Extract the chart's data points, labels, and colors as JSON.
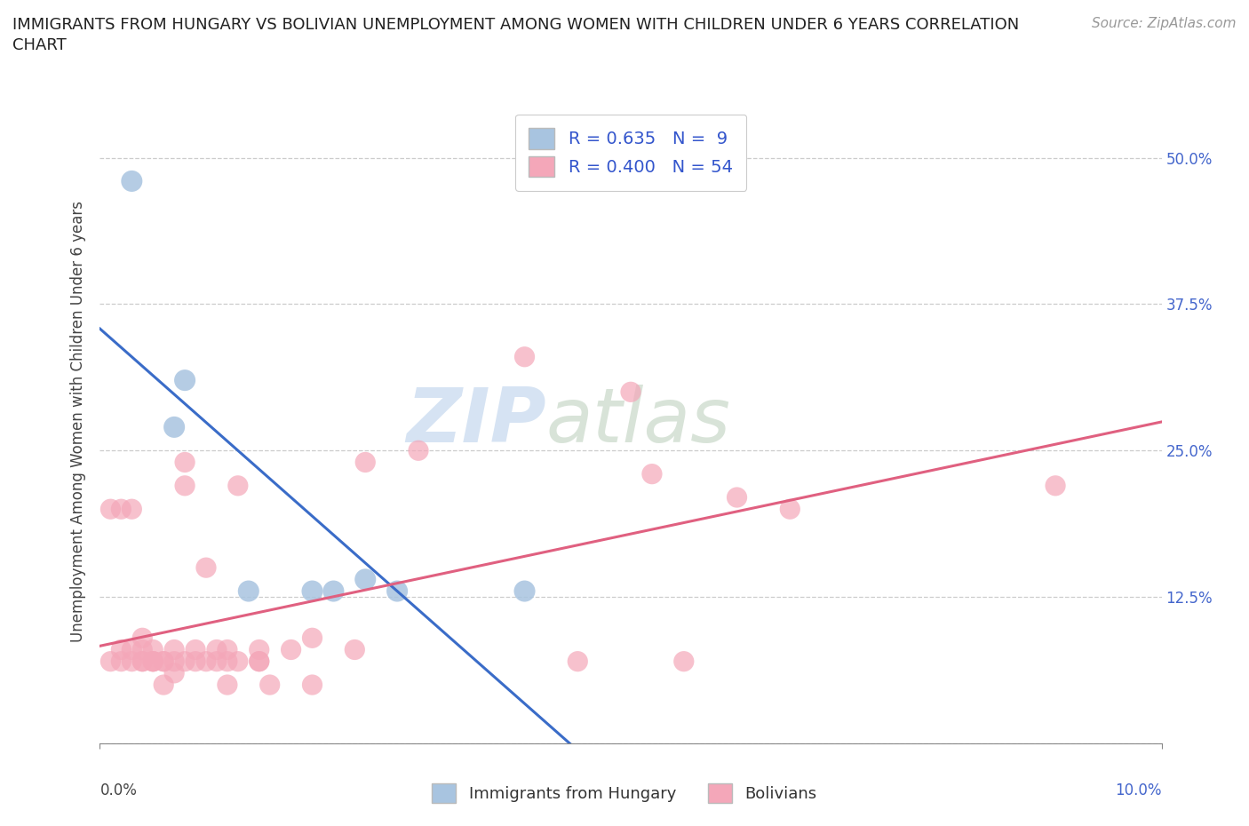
{
  "title": "IMMIGRANTS FROM HUNGARY VS BOLIVIAN UNEMPLOYMENT AMONG WOMEN WITH CHILDREN UNDER 6 YEARS CORRELATION\nCHART",
  "source": "Source: ZipAtlas.com",
  "ylabel": "Unemployment Among Women with Children Under 6 years",
  "watermark_zip": "ZIP",
  "watermark_atlas": "atlas",
  "xlim": [
    0.0,
    0.1
  ],
  "ylim": [
    0.0,
    0.55
  ],
  "yticks": [
    0.0,
    0.125,
    0.25,
    0.375,
    0.5
  ],
  "ytick_labels": [
    "",
    "12.5%",
    "25.0%",
    "37.5%",
    "50.0%"
  ],
  "hungary_R": 0.635,
  "hungary_N": 9,
  "bolivia_R": 0.4,
  "bolivia_N": 54,
  "hungary_color": "#a8c4e0",
  "bolivia_color": "#f4a7b9",
  "hungary_line_color": "#3a6cc8",
  "bolivia_line_color": "#e06080",
  "hungary_scatter": [
    [
      0.003,
      0.48
    ],
    [
      0.007,
      0.27
    ],
    [
      0.008,
      0.31
    ],
    [
      0.014,
      0.13
    ],
    [
      0.02,
      0.13
    ],
    [
      0.022,
      0.13
    ],
    [
      0.025,
      0.14
    ],
    [
      0.028,
      0.13
    ],
    [
      0.04,
      0.13
    ]
  ],
  "bolivia_scatter": [
    [
      0.001,
      0.2
    ],
    [
      0.001,
      0.07
    ],
    [
      0.002,
      0.07
    ],
    [
      0.002,
      0.08
    ],
    [
      0.002,
      0.2
    ],
    [
      0.003,
      0.08
    ],
    [
      0.003,
      0.07
    ],
    [
      0.003,
      0.2
    ],
    [
      0.004,
      0.07
    ],
    [
      0.004,
      0.08
    ],
    [
      0.004,
      0.09
    ],
    [
      0.004,
      0.07
    ],
    [
      0.005,
      0.07
    ],
    [
      0.005,
      0.07
    ],
    [
      0.005,
      0.08
    ],
    [
      0.005,
      0.07
    ],
    [
      0.006,
      0.05
    ],
    [
      0.006,
      0.07
    ],
    [
      0.006,
      0.07
    ],
    [
      0.007,
      0.08
    ],
    [
      0.007,
      0.07
    ],
    [
      0.007,
      0.06
    ],
    [
      0.008,
      0.07
    ],
    [
      0.008,
      0.22
    ],
    [
      0.008,
      0.24
    ],
    [
      0.009,
      0.07
    ],
    [
      0.009,
      0.08
    ],
    [
      0.01,
      0.07
    ],
    [
      0.01,
      0.15
    ],
    [
      0.011,
      0.07
    ],
    [
      0.011,
      0.08
    ],
    [
      0.012,
      0.07
    ],
    [
      0.012,
      0.05
    ],
    [
      0.012,
      0.08
    ],
    [
      0.013,
      0.22
    ],
    [
      0.013,
      0.07
    ],
    [
      0.015,
      0.07
    ],
    [
      0.015,
      0.08
    ],
    [
      0.015,
      0.07
    ],
    [
      0.016,
      0.05
    ],
    [
      0.018,
      0.08
    ],
    [
      0.02,
      0.09
    ],
    [
      0.02,
      0.05
    ],
    [
      0.024,
      0.08
    ],
    [
      0.025,
      0.24
    ],
    [
      0.03,
      0.25
    ],
    [
      0.04,
      0.33
    ],
    [
      0.045,
      0.07
    ],
    [
      0.05,
      0.3
    ],
    [
      0.052,
      0.23
    ],
    [
      0.055,
      0.07
    ],
    [
      0.06,
      0.21
    ],
    [
      0.065,
      0.2
    ],
    [
      0.09,
      0.22
    ]
  ]
}
